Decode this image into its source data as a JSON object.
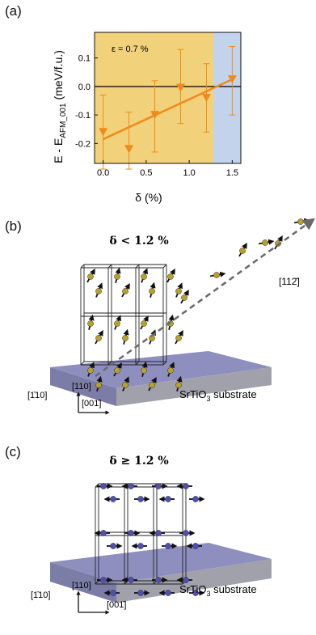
{
  "panels": {
    "a": "(a)",
    "b": "(b)",
    "c": "(c)"
  },
  "colors": {
    "region_low": "#f1d27a",
    "region_high": "#c3d3ec",
    "series": "#f08a1c",
    "substrate_top": "#8e8fbf",
    "substrate_front": "#9b9ca6",
    "atom_ferro": "#b7a227",
    "atom_afm": "#4f4fb5"
  },
  "chart_data": {
    "type": "scatter",
    "annotation": "ε = 0.7 %",
    "xlabel": "δ (%)",
    "ylabel_main": "E - E",
    "ylabel_sub": "AFM_001",
    "ylabel_unit": " (meV/f.u.)",
    "xlim": [
      -0.1,
      1.6
    ],
    "ylim": [
      -0.27,
      0.19
    ],
    "xticks": [
      0.0,
      0.5,
      1.0,
      1.5
    ],
    "xtick_labels": [
      "0.0",
      "0.5",
      "1.0",
      "1.5"
    ],
    "yticks": [
      0.1,
      0.0,
      -0.1,
      -0.2
    ],
    "ytick_labels": [
      "0.1",
      "0.0",
      "-0.1",
      "-0.2"
    ],
    "regions": [
      {
        "from": -0.1,
        "to": 1.28,
        "color": "#f1d27a"
      },
      {
        "from": 1.28,
        "to": 1.6,
        "color": "#c3d3ec"
      }
    ],
    "zero_line": 0.0,
    "points": [
      {
        "x": 0.0,
        "y": -0.16,
        "err_low": -0.29,
        "err_high": -0.03
      },
      {
        "x": 0.3,
        "y": -0.22,
        "err_low": -0.29,
        "err_high": -0.09
      },
      {
        "x": 0.6,
        "y": -0.1,
        "err_low": -0.23,
        "err_high": 0.02
      },
      {
        "x": 0.9,
        "y": -0.005,
        "err_low": -0.13,
        "err_high": 0.13
      },
      {
        "x": 1.2,
        "y": -0.04,
        "err_low": -0.16,
        "err_high": 0.08
      },
      {
        "x": 1.5,
        "y": 0.025,
        "err_low": -0.1,
        "err_high": 0.14
      }
    ],
    "fit_line": {
      "x": [
        0.0,
        1.5
      ],
      "y": [
        -0.185,
        0.025
      ]
    }
  },
  "diagram_b": {
    "condition": "δ < 1.2 %",
    "direction_label": "[112̄]",
    "axis_up": "[110]",
    "axis_side": "[1̄10]",
    "axis_right": "[001̄]",
    "substrate_label": "SrTiO",
    "substrate_sub": "3",
    "substrate_suffix": " substrate"
  },
  "diagram_c": {
    "condition": "δ ≥ 1.2 %",
    "axis_up": "[110]",
    "axis_side": "[1̄10]",
    "axis_right": "[001̄]",
    "substrate_label": "SrTiO",
    "substrate_sub": "3",
    "substrate_suffix": " substrate"
  }
}
